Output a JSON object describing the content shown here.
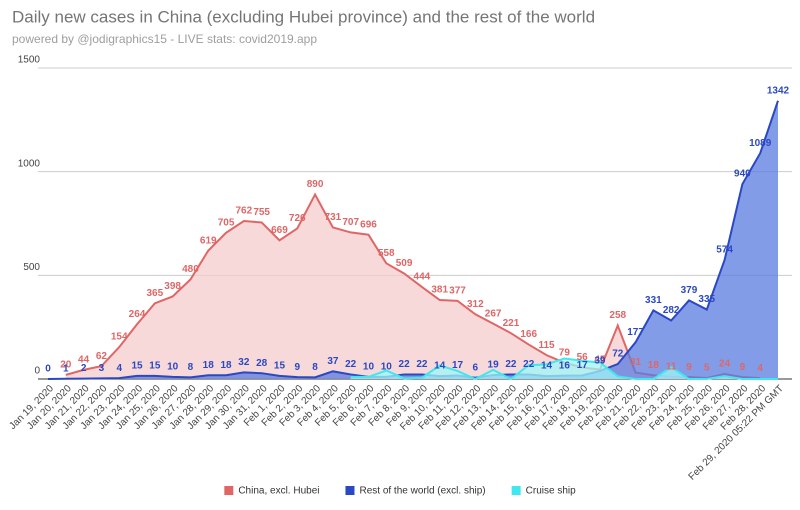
{
  "chart_data": {
    "type": "area",
    "title": "Daily new cases in China (excluding Hubei province) and the rest of the world",
    "subtitle": "powered by @jodigraphics15 - LIVE stats: covid2019.app",
    "categories": [
      "Jan 19, 2020",
      "Jan 20, 2020",
      "Jan 21, 2020",
      "Jan 22, 2020",
      "Jan 23, 2020",
      "Jan 24, 2020",
      "Jan 25, 2020",
      "Jan 26, 2020",
      "Jan 27, 2020",
      "Jan 28, 2020",
      "Jan 29, 2020",
      "Jan 30, 2020",
      "Jan 31, 2020",
      "Feb 1, 2020",
      "Feb 2, 2020",
      "Feb 3, 2020",
      "Feb 4, 2020",
      "Feb 5, 2020",
      "Feb 6, 2020",
      "Feb 7, 2020",
      "Feb 8, 2020",
      "Feb 9, 2020",
      "Feb 10, 2020",
      "Feb 11, 2020",
      "Feb 12, 2020",
      "Feb 13, 2020",
      "Feb 14, 2020",
      "Feb 15, 2020",
      "Feb 16, 2020",
      "Feb 17, 2020",
      "Feb 18, 2020",
      "Feb 19, 2020",
      "Feb 20, 2020",
      "Feb 21, 2020",
      "Feb 22, 2020",
      "Feb 23, 2020",
      "Feb 24, 2020",
      "Feb 25, 2020",
      "Feb 26, 2020",
      "Feb 27, 2020",
      "Feb 28, 2020",
      "Feb 29, 2020 05:22 PM GMT"
    ],
    "series": [
      {
        "name": "China, excl. Hubei",
        "color": "#e06666",
        "fill": "#f4cccc",
        "values": [
          null,
          20,
          44,
          62,
          154,
          264,
          365,
          398,
          480,
          619,
          705,
          762,
          755,
          669,
          726,
          890,
          731,
          707,
          696,
          558,
          509,
          444,
          381,
          377,
          312,
          267,
          221,
          166,
          115,
          79,
          56,
          45,
          258,
          31,
          18,
          11,
          9,
          5,
          24,
          9,
          4,
          null
        ]
      },
      {
        "name": "Rest of the world (excl. ship)",
        "color": "#2a48c4",
        "fill": "#5a7be0",
        "values": [
          0,
          1,
          2,
          3,
          4,
          15,
          15,
          10,
          8,
          18,
          18,
          32,
          28,
          15,
          9,
          8,
          37,
          22,
          10,
          10,
          22,
          22,
          14,
          17,
          6,
          19,
          22,
          22,
          14,
          16,
          17,
          39,
          72,
          177,
          331,
          282,
          379,
          335,
          574,
          940,
          1089,
          1342
        ]
      },
      {
        "name": "Cruise ship",
        "color": "#3ee8ee",
        "fill": "#9ff5f7",
        "values": [
          null,
          null,
          null,
          null,
          null,
          null,
          null,
          null,
          null,
          null,
          null,
          null,
          null,
          null,
          null,
          null,
          null,
          10,
          10,
          41,
          3,
          6,
          65,
          39,
          0,
          44,
          0,
          67,
          70,
          99,
          88,
          79,
          13,
          0,
          0,
          57,
          0,
          0,
          14,
          0,
          0,
          0
        ]
      }
    ],
    "ylim": [
      0,
      1500
    ],
    "yticks": [
      0,
      500,
      1000,
      1500
    ],
    "grid": true,
    "legend": "bottom"
  }
}
